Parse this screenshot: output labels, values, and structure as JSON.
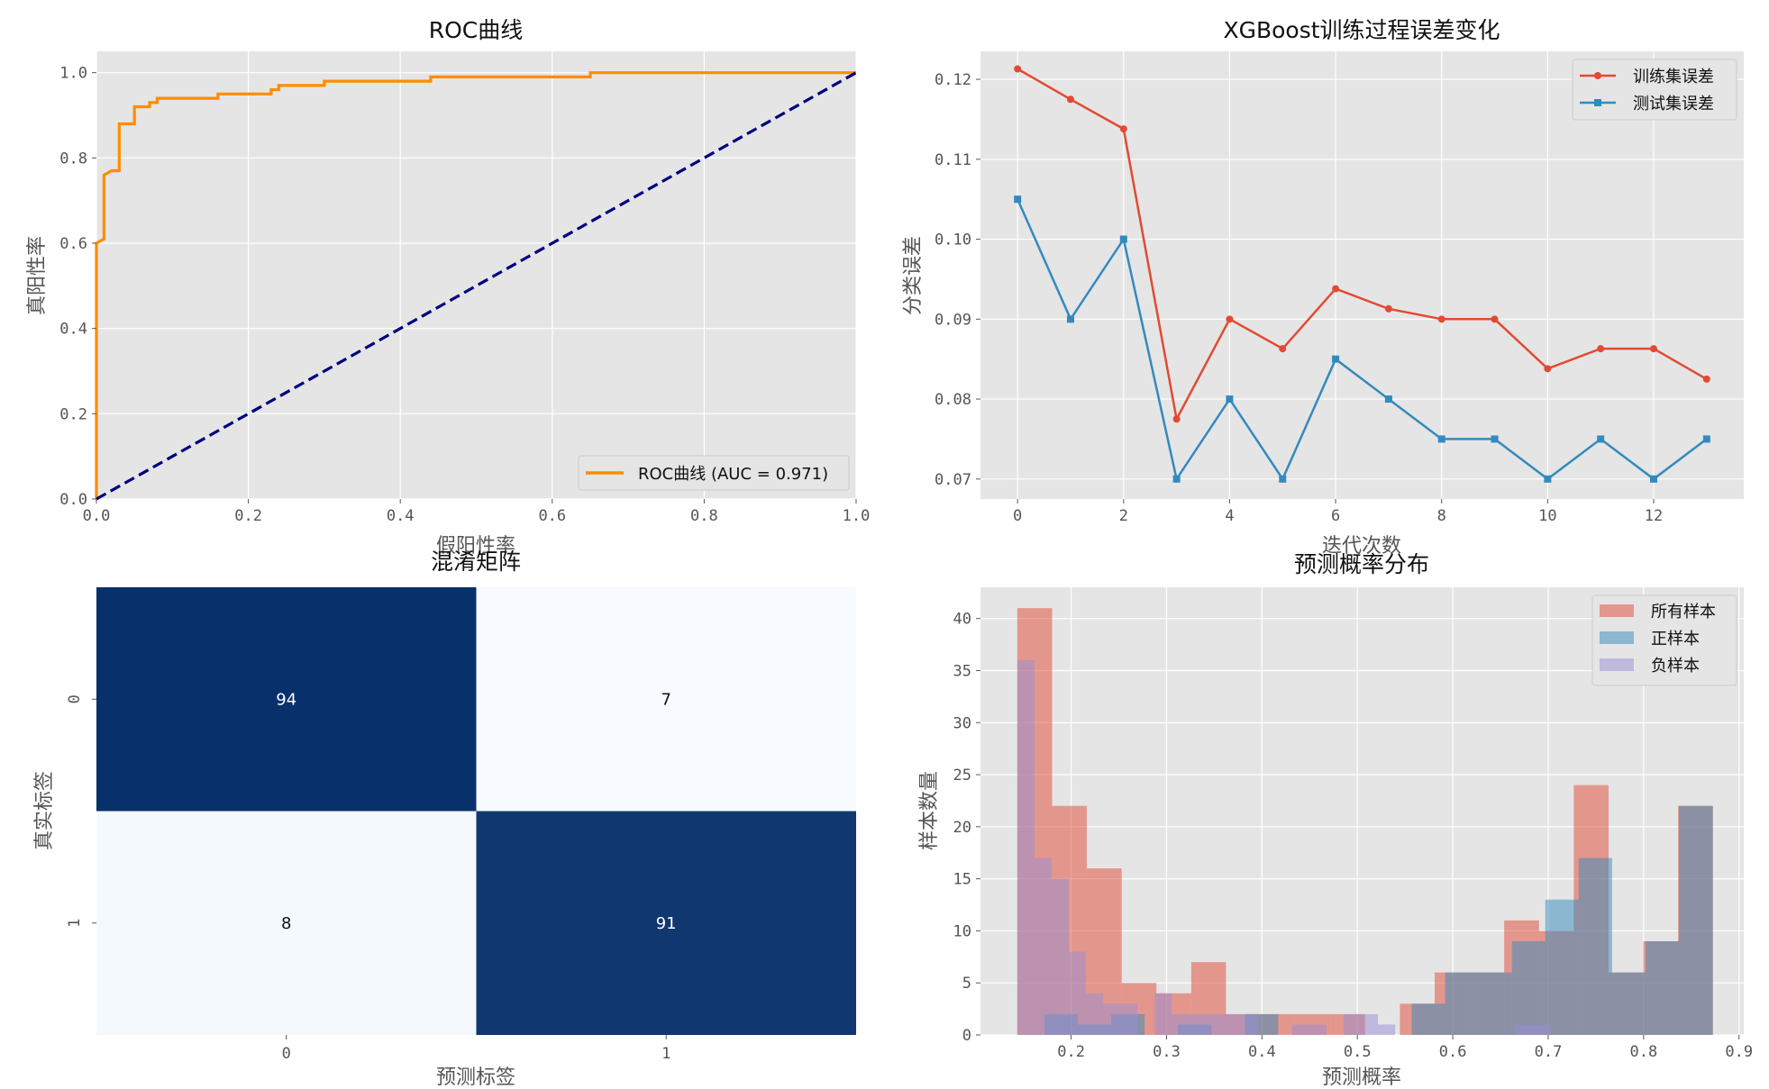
{
  "chart_data": [
    {
      "id": "roc",
      "type": "line",
      "title": "ROC曲线",
      "xlabel": "假阳性率",
      "ylabel": "真阳性率",
      "xlim": [
        0,
        1
      ],
      "ylim": [
        0,
        1.05
      ],
      "xticks": [
        "0.0",
        "0.2",
        "0.4",
        "0.6",
        "0.8",
        "1.0"
      ],
      "yticks": [
        "0.0",
        "0.2",
        "0.4",
        "0.6",
        "0.8",
        "1.0"
      ],
      "grid": true,
      "legend_position": "lower-right",
      "series": [
        {
          "name": "ROC曲线 (AUC = 0.971)",
          "color": "#ff8c00",
          "style": "step",
          "x": [
            0,
            0,
            0,
            0.01,
            0.01,
            0.01,
            0.02,
            0.03,
            0.03,
            0.05,
            0.05,
            0.07,
            0.07,
            0.08,
            0.08,
            0.16,
            0.16,
            0.23,
            0.23,
            0.24,
            0.24,
            0.3,
            0.3,
            0.44,
            0.44,
            0.65,
            0.65,
            1.0
          ],
          "y": [
            0,
            0.59,
            0.6,
            0.61,
            0.75,
            0.76,
            0.77,
            0.77,
            0.88,
            0.88,
            0.92,
            0.92,
            0.93,
            0.93,
            0.94,
            0.94,
            0.95,
            0.95,
            0.96,
            0.96,
            0.97,
            0.97,
            0.98,
            0.98,
            0.99,
            0.99,
            1.0,
            1.0
          ]
        },
        {
          "name": "",
          "color": "#000080",
          "style": "dashed",
          "x": [
            0,
            1
          ],
          "y": [
            0,
            1
          ]
        }
      ]
    },
    {
      "id": "error",
      "type": "line",
      "title": "XGBoost训练过程误差变化",
      "xlabel": "迭代次数",
      "ylabel": "分类误差",
      "xlim": [
        -0.7,
        13.7
      ],
      "ylim": [
        0.0675,
        0.1235
      ],
      "xticks": [
        0,
        2,
        4,
        6,
        8,
        10,
        12
      ],
      "yticks": [
        "0.07",
        "0.08",
        "0.09",
        "0.10",
        "0.11",
        "0.12"
      ],
      "grid": true,
      "legend_position": "upper-right",
      "series": [
        {
          "name": "训练集误差",
          "color": "#e24a33",
          "marker": "circle",
          "x": [
            0,
            1,
            2,
            3,
            4,
            5,
            6,
            7,
            8,
            9,
            10,
            11,
            12,
            13
          ],
          "y": [
            0.1213,
            0.1175,
            0.1138,
            0.0775,
            0.09,
            0.0863,
            0.0938,
            0.0913,
            0.09,
            0.09,
            0.0838,
            0.0863,
            0.0863,
            0.0825
          ]
        },
        {
          "name": "测试集误差",
          "color": "#348abd",
          "marker": "square",
          "x": [
            0,
            1,
            2,
            3,
            4,
            5,
            6,
            7,
            8,
            9,
            10,
            11,
            12,
            13
          ],
          "y": [
            0.105,
            0.09,
            0.1,
            0.07,
            0.08,
            0.07,
            0.085,
            0.08,
            0.075,
            0.075,
            0.07,
            0.075,
            0.07,
            0.075
          ]
        }
      ]
    },
    {
      "id": "confusion",
      "type": "heatmap",
      "title": "混淆矩阵",
      "xlabel": "预测标签",
      "ylabel": "真实标签",
      "x_categories": [
        "0",
        "1"
      ],
      "y_categories": [
        "0",
        "1"
      ],
      "values": [
        [
          94,
          7
        ],
        [
          8,
          91
        ]
      ],
      "colormap": [
        "#f7fbff",
        "#08306b"
      ]
    },
    {
      "id": "probdist",
      "type": "bar",
      "title": "预测概率分布",
      "xlabel": "预测概率",
      "ylabel": "样本数量",
      "xlim": [
        0.105,
        0.905
      ],
      "ylim": [
        0,
        43
      ],
      "xticks": [
        "0.2",
        "0.3",
        "0.4",
        "0.5",
        "0.6",
        "0.7",
        "0.8",
        "0.9"
      ],
      "yticks": [
        0,
        5,
        10,
        15,
        20,
        25,
        30,
        35,
        40
      ],
      "grid": true,
      "legend_position": "upper-right",
      "bins_all": [
        0.1436,
        0.1801,
        0.2165,
        0.253,
        0.2894,
        0.3259,
        0.3623,
        0.3988,
        0.4352,
        0.4717,
        0.5081,
        0.5446,
        0.581,
        0.6175,
        0.6539,
        0.6904,
        0.7268,
        0.7633,
        0.7997,
        0.8362,
        0.8726
      ],
      "bins_pos": [
        0.172,
        0.207,
        0.242,
        0.277,
        0.312,
        0.347,
        0.382,
        0.417,
        0.452,
        0.487,
        0.522,
        0.557,
        0.592,
        0.627,
        0.662,
        0.697,
        0.732,
        0.767,
        0.802,
        0.837,
        0.8726
      ],
      "bins_neg": [
        0.1436,
        0.1616,
        0.1796,
        0.1976,
        0.2156,
        0.2336,
        0.2516,
        0.2696,
        0.2876,
        0.3056,
        0.3236,
        0.3416,
        0.3596,
        0.3776,
        0.3956,
        0.4136,
        0.4316,
        0.4496,
        0.4676,
        0.4856,
        0.5036,
        0.5216,
        0.5396,
        0.5576,
        0.5756,
        0.5936,
        0.6116,
        0.6296,
        0.6476,
        0.6656,
        0.6836,
        0.7016,
        0.7196,
        0.7376,
        0.7556,
        0.7736,
        0.7916,
        0.8096,
        0.8276,
        0.8456,
        0.8726
      ],
      "series": [
        {
          "name": "所有样本",
          "color": "#e24a33",
          "alpha": 0.5,
          "values": [
            41,
            22,
            16,
            5,
            4,
            7,
            2,
            2,
            2,
            2,
            0,
            3,
            6,
            6,
            11,
            10,
            24,
            6,
            9,
            22
          ]
        },
        {
          "name": "正样本",
          "color": "#348abd",
          "alpha": 0.5,
          "values": [
            2,
            1,
            2,
            0,
            1,
            0,
            2,
            0,
            0,
            0,
            0,
            3,
            6,
            6,
            9,
            13,
            17,
            6,
            9,
            22
          ]
        },
        {
          "name": "负样本",
          "color": "#988ed5",
          "alpha": 0.5,
          "values": [
            36,
            17,
            15,
            8,
            4,
            3,
            3,
            0,
            4,
            2,
            2,
            2,
            2,
            2,
            0,
            0,
            1,
            1,
            0,
            2,
            2,
            1,
            0,
            0,
            0,
            0,
            0,
            0,
            0,
            1,
            1,
            0,
            0,
            0,
            0,
            0,
            0,
            0,
            0,
            0
          ]
        }
      ]
    }
  ]
}
